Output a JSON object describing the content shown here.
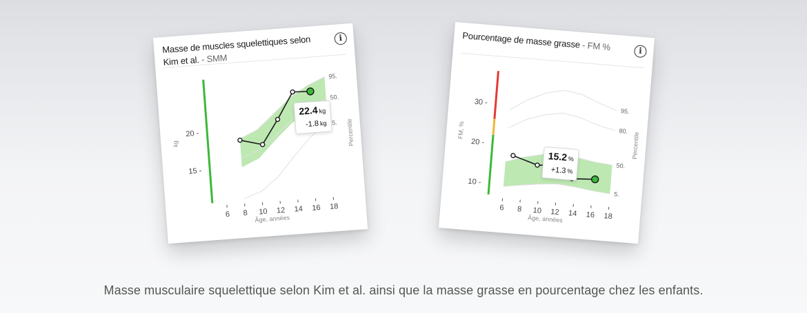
{
  "caption": "Masse musculaire squelettique selon Kim et al. ainsi que la masse grasse en pourcentage chez les enfants.",
  "colors": {
    "band": "#bde8b2",
    "indicator_green": "#3bb83a",
    "indicator_yellow": "#f2b632",
    "indicator_red": "#e53935",
    "line": "#1a1a1a"
  },
  "chart_data": [
    {
      "type": "line",
      "title": "Masse de muscles squelettiques selon Kim et al.",
      "subtitle": "- SMM",
      "xlabel": "Âge, années",
      "ylabel": "kg",
      "percentile_label": "Percentile",
      "x_ticks": [
        6,
        8,
        10,
        12,
        14,
        16,
        18
      ],
      "y_ticks": [
        15,
        20
      ],
      "xlim": [
        5,
        18.5
      ],
      "ylim": [
        10.5,
        27
      ],
      "percentile_labels": [
        "95.",
        "50.",
        "5."
      ],
      "percentile_curves": [
        {
          "name": "95.",
          "x": [
            8,
            10,
            12,
            14,
            16,
            18
          ],
          "y": [
            18.8,
            19.8,
            21.8,
            23.8,
            25.2,
            26.2
          ]
        },
        {
          "name": "50.",
          "x": [
            8,
            10,
            12,
            14,
            16,
            18
          ],
          "y": [
            16.2,
            17.1,
            18.8,
            20.8,
            22.3,
            23.4
          ]
        },
        {
          "name": "5.",
          "x": [
            8,
            10,
            12,
            14,
            16,
            18
          ],
          "y": [
            10.8,
            11.6,
            13.4,
            16.0,
            18.4,
            20.0
          ]
        }
      ],
      "band": {
        "x": [
          8,
          10,
          12,
          14,
          16,
          18
        ],
        "lower": [
          15.0,
          16.0,
          18.3,
          20.4,
          21.6,
          22.4
        ],
        "upper": [
          18.8,
          19.8,
          21.8,
          23.8,
          25.2,
          26.2
        ]
      },
      "series": [
        {
          "values": [
            {
              "x": 8,
              "y": 18.6
            },
            {
              "x": 10.5,
              "y": 17.8
            },
            {
              "x": 12.4,
              "y": 21.0
            },
            {
              "x": 14.3,
              "y": 24.5
            },
            {
              "x": 16.3,
              "y": 24.4
            }
          ]
        }
      ],
      "callout": {
        "value": "22.4",
        "unit": "kg",
        "delta": "-1.8",
        "delta_unit": "kg"
      },
      "indicator": [
        {
          "color": "green",
          "from": 10.5,
          "to": 27
        }
      ]
    },
    {
      "type": "line",
      "title": "Pourcentage de masse grasse",
      "subtitle": "- FM %",
      "xlabel": "Âge, années",
      "ylabel": "FM, %",
      "percentile_label": "Percentile",
      "x_ticks": [
        6,
        8,
        10,
        12,
        14,
        16,
        18
      ],
      "y_ticks": [
        10,
        20,
        30
      ],
      "xlim": [
        5,
        18.5
      ],
      "ylim": [
        7,
        38
      ],
      "percentile_labels": [
        "95.",
        "80.",
        "50.",
        "5."
      ],
      "percentile_curves": [
        {
          "name": "95.",
          "x": [
            6,
            8,
            10,
            12,
            14,
            16,
            18
          ],
          "y": [
            28.5,
            31.5,
            33.5,
            34.5,
            33.8,
            32.0,
            30.5
          ]
        },
        {
          "name": "80.",
          "x": [
            6,
            8,
            10,
            12,
            14,
            16,
            18
          ],
          "y": [
            24.0,
            26.5,
            28.0,
            28.8,
            28.0,
            26.5,
            25.5
          ]
        },
        {
          "name": "50.",
          "x": [
            6,
            8,
            10,
            12,
            14,
            16,
            18
          ],
          "y": [
            15.5,
            17.0,
            18.0,
            18.5,
            18.0,
            17.2,
            16.8
          ]
        },
        {
          "name": "5.",
          "x": [
            6,
            8,
            10,
            12,
            14,
            16,
            18
          ],
          "y": [
            9.3,
            10.0,
            10.6,
            11.0,
            10.6,
            10.0,
            9.6
          ]
        }
      ],
      "band": {
        "x": [
          6,
          8,
          10,
          12,
          14,
          16,
          18
        ],
        "lower": [
          9.3,
          10.0,
          10.6,
          11.0,
          10.6,
          10.0,
          9.6
        ],
        "upper": [
          15.5,
          17.0,
          18.0,
          18.5,
          18.0,
          17.2,
          16.8
        ]
      },
      "series": [
        {
          "values": [
            {
              "x": 6.8,
              "y": 17.2
            },
            {
              "x": 9.6,
              "y": 15.3
            },
            {
              "x": 11.6,
              "y": 15.6
            },
            {
              "x": 13.6,
              "y": 12.6
            },
            {
              "x": 16.2,
              "y": 12.9
            }
          ]
        }
      ],
      "callout": {
        "value": "15.2",
        "unit": "%",
        "delta": "+1.3",
        "delta_unit": "%"
      },
      "indicator": [
        {
          "color": "green",
          "from": 7,
          "to": 22
        },
        {
          "color": "yellow",
          "from": 22,
          "to": 26
        },
        {
          "color": "red",
          "from": 26,
          "to": 38
        }
      ]
    }
  ]
}
